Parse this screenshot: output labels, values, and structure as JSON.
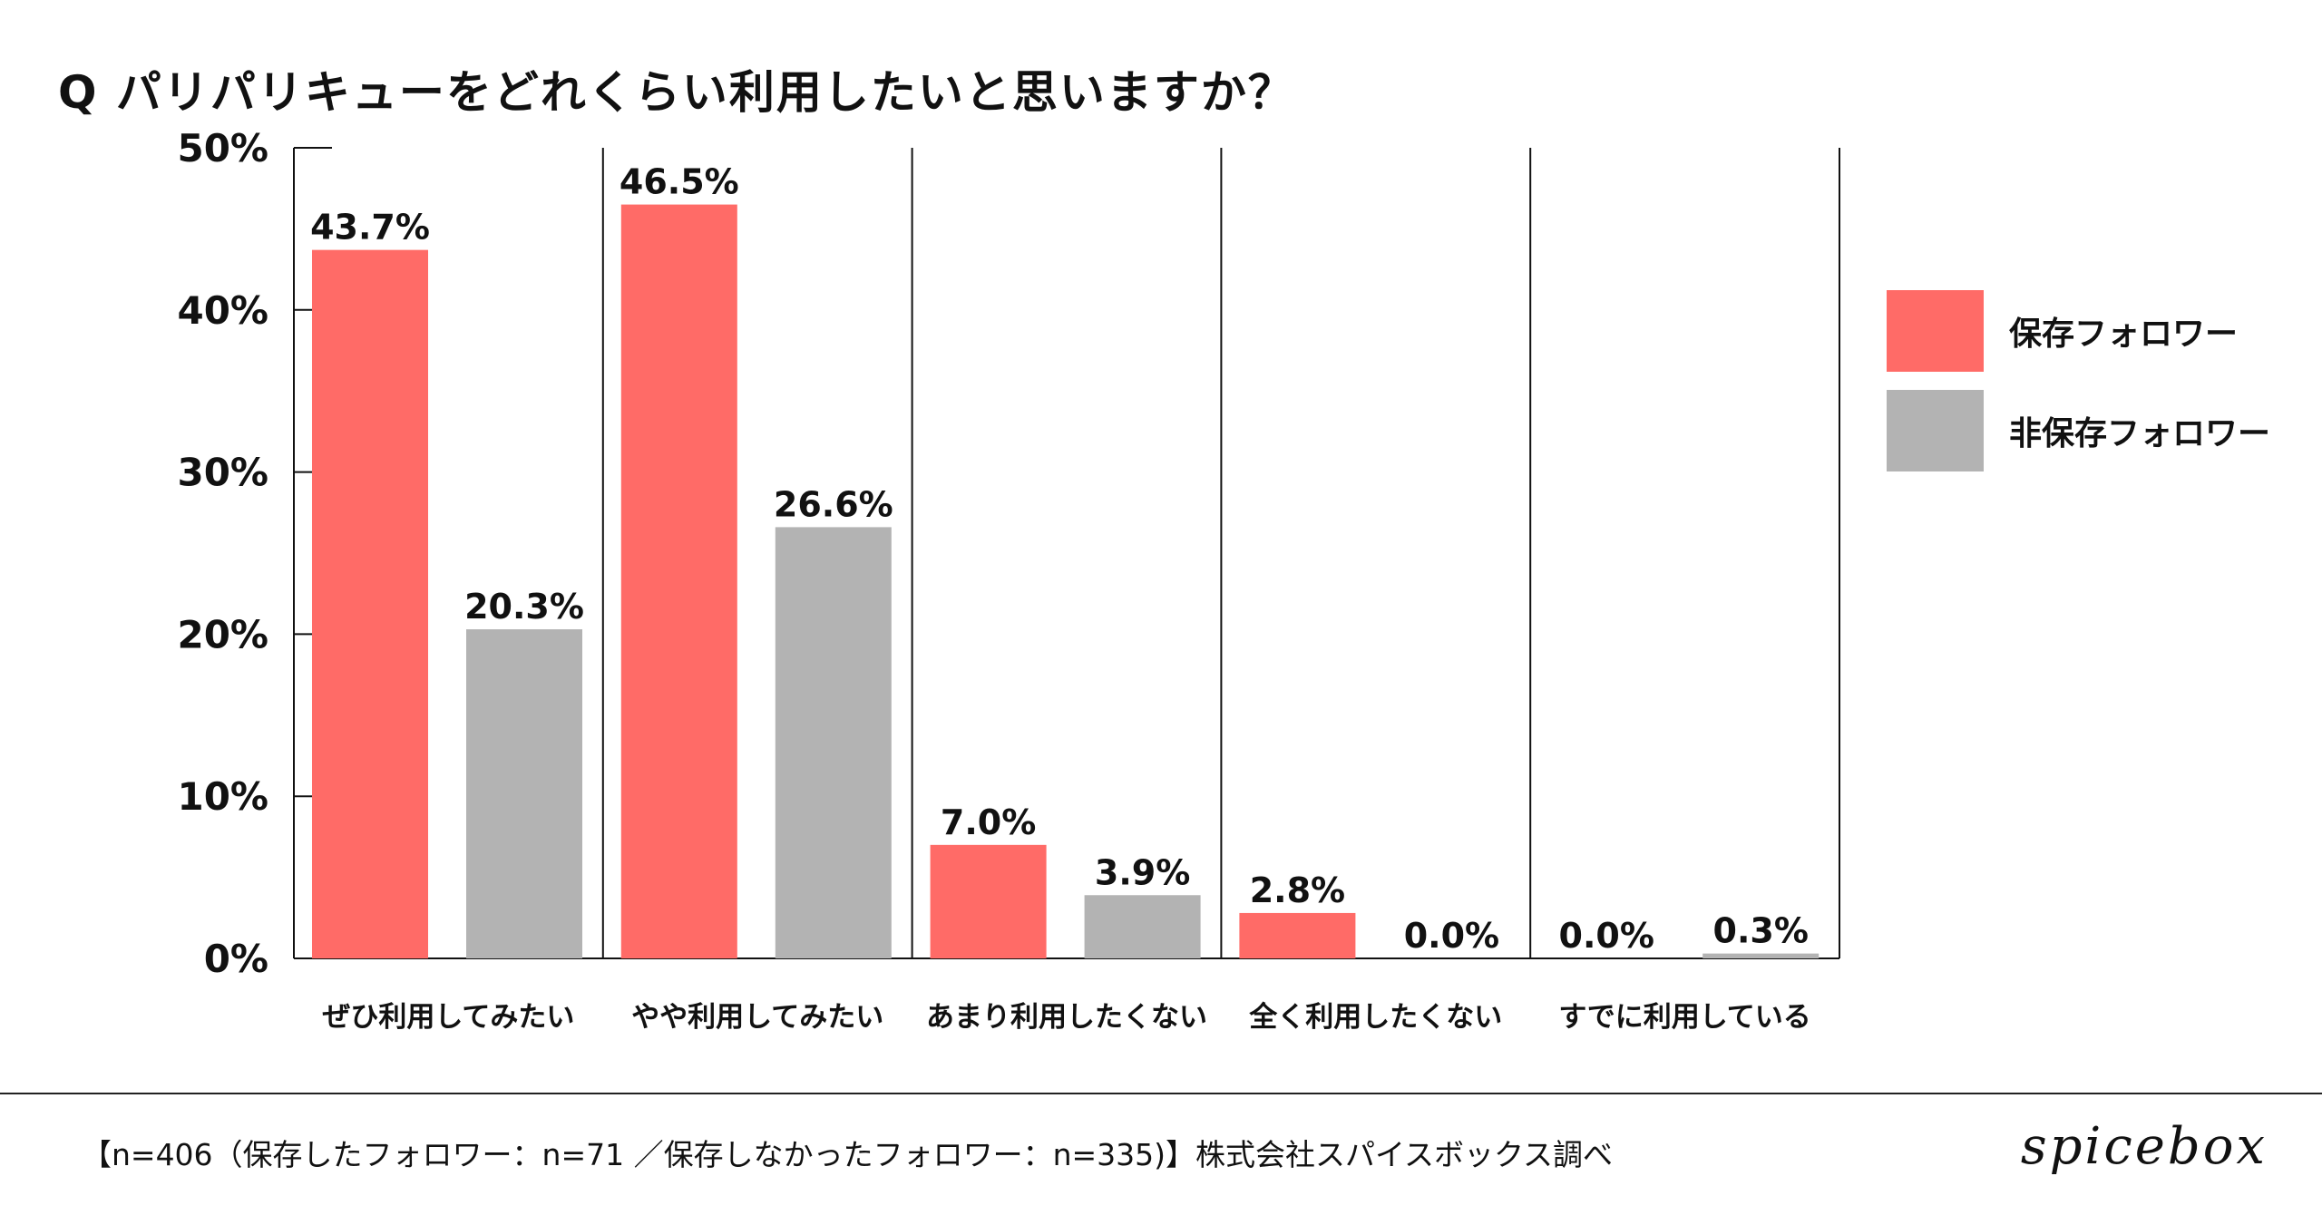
{
  "chart_data": {
    "type": "bar",
    "title": "Q パリパリキューをどれくらい利用したいと思いますか？",
    "categories": [
      "ぜひ利用してみたい",
      "やや利用してみたい",
      "あまり利用したくない",
      "全く利用したくない",
      "すでに利用している"
    ],
    "series": [
      {
        "name": "保存フォロワー",
        "color": "#ff6b67",
        "values": [
          43.7,
          46.5,
          7.0,
          2.8,
          0.0
        ],
        "labels": [
          "43.7%",
          "46.5%",
          "7.0%",
          "2.8%",
          "0.0%"
        ]
      },
      {
        "name": "非保存フォロワー",
        "color": "#b3b3b3",
        "values": [
          20.3,
          26.6,
          3.9,
          0.0,
          0.3
        ],
        "labels": [
          "20.3%",
          "26.6%",
          "3.9%",
          "0.0%",
          "0.3%"
        ]
      }
    ],
    "ylim": [
      0,
      50
    ],
    "yticks": [
      0,
      10,
      20,
      30,
      40,
      50
    ],
    "ytick_labels": [
      "0%",
      "10%",
      "20%",
      "30%",
      "40%",
      "50%"
    ],
    "xlabel": "",
    "ylabel": "",
    "legend_position": "right",
    "grid": false
  },
  "footnote": "【n=406（保存したフォロワー：n=71 ／保存しなかったフォロワー：n=335)】株式会社スパイスボックス調べ",
  "brand": "spicebox"
}
